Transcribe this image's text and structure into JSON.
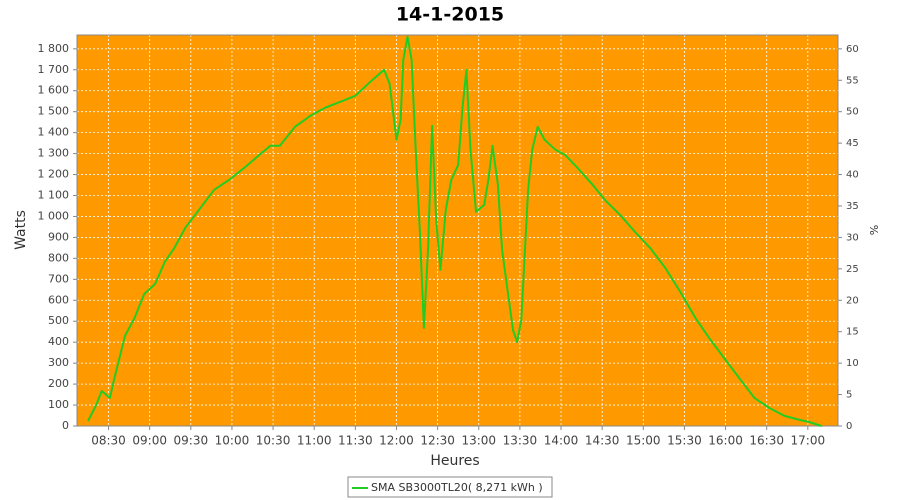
{
  "chart_data": {
    "type": "line",
    "title": "14-1-2015",
    "xlabel": "Heures",
    "ylabel": "Watts",
    "y2label": "%",
    "xlim": [
      "08:07",
      "17:22"
    ],
    "xticks": [
      "08:30",
      "09:00",
      "09:30",
      "10:00",
      "10:30",
      "11:00",
      "11:30",
      "12:00",
      "12:30",
      "13:00",
      "13:30",
      "14:00",
      "14:30",
      "15:00",
      "15:30",
      "16:00",
      "16:30",
      "17:00"
    ],
    "ylim": [
      0,
      1866
    ],
    "yticks": [
      0,
      100,
      200,
      300,
      400,
      500,
      600,
      700,
      800,
      900,
      {
        "value": 1000,
        "label": "1 000"
      },
      {
        "value": 1100,
        "label": "1 100"
      },
      {
        "value": 1200,
        "label": "1 200"
      },
      {
        "value": 1300,
        "label": "1 300"
      },
      {
        "value": 1400,
        "label": "1 400"
      },
      {
        "value": 1500,
        "label": "1 500"
      },
      {
        "value": 1600,
        "label": "1 600"
      },
      {
        "value": 1700,
        "label": "1 700"
      },
      {
        "value": 1800,
        "label": "1 800"
      }
    ],
    "y2lim": [
      0,
      62.2
    ],
    "y2ticks": [
      0,
      5,
      10,
      15,
      20,
      25,
      30,
      35,
      40,
      45,
      50,
      55,
      60
    ],
    "grid": true,
    "background": "#ff9900",
    "legend": "bottom",
    "x": [
      "08:15",
      "08:21",
      "08:25",
      "08:31",
      "08:34",
      "08:38",
      "08:42",
      "08:49",
      "08:56",
      "09:04",
      "09:11",
      "09:18",
      "09:26",
      "09:36",
      "09:47",
      "09:58",
      "10:09",
      "10:20",
      "10:28",
      "10:35",
      "10:46",
      "10:57",
      "11:08",
      "11:19",
      "11:30",
      "11:41",
      "11:51",
      "11:55",
      "12:00",
      "12:03",
      "12:05",
      "12:08",
      "12:11",
      "12:14",
      "12:17",
      "12:20",
      "12:23",
      "12:26",
      "12:29",
      "12:32",
      "12:36",
      "12:40",
      "12:45",
      "12:48",
      "12:51",
      "12:54",
      "12:58",
      "13:04",
      "13:07",
      "13:10",
      "13:14",
      "13:17",
      "13:21",
      "13:25",
      "13:28",
      "13:31",
      "13:36",
      "13:39",
      "13:43",
      "13:48",
      "13:56",
      "14:03",
      "14:12",
      "14:23",
      "14:32",
      "14:43",
      "14:54",
      "15:05",
      "15:16",
      "15:27",
      "15:38",
      "15:49",
      "16:00",
      "16:11",
      "16:21",
      "16:32",
      "16:43",
      "16:54",
      "17:01",
      "17:10"
    ],
    "series": [
      {
        "name": "SMA SB3000TL20( 8,271 kWh )",
        "color": "#22cc22",
        "values": [
          24,
          100,
          167,
          134,
          220,
          325,
          430,
          516,
          630,
          678,
          783,
          850,
          946,
          1032,
          1127,
          1175,
          1232,
          1294,
          1337,
          1337,
          1428,
          1480,
          1519,
          1547,
          1576,
          1643,
          1700,
          1633,
          1366,
          1461,
          1748,
          1858,
          1748,
          1318,
          936,
          468,
          840,
          1433,
          984,
          745,
          1032,
          1175,
          1246,
          1509,
          1700,
          1318,
          1022,
          1055,
          1175,
          1337,
          1151,
          840,
          650,
          458,
          401,
          506,
          1127,
          1318,
          1428,
          1366,
          1318,
          1294,
          1232,
          1151,
          1079,
          1008,
          926,
          850,
          755,
          640,
          516,
          411,
          315,
          220,
          134,
          86,
          48,
          29,
          19,
          0
        ]
      }
    ]
  }
}
